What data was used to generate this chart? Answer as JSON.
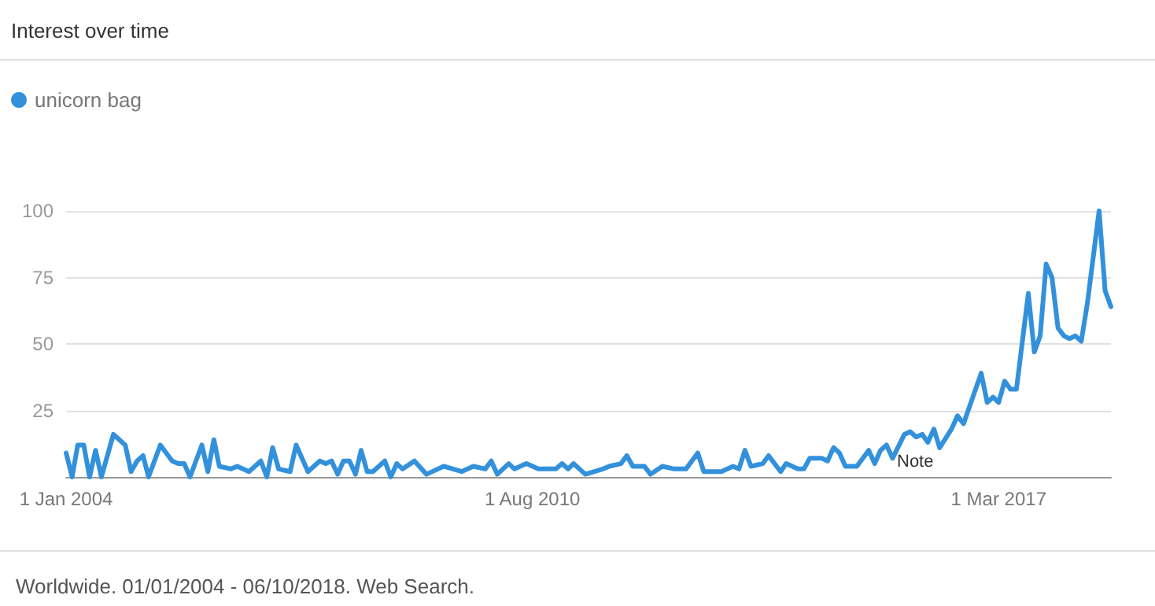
{
  "chart_data": {
    "type": "line",
    "title": "Interest over time",
    "annotations": [
      "Note",
      "Worldwide. 01/01/2004 - 06/10/2018. Web Search."
    ],
    "x": [
      "2004-01",
      "2004-02",
      "2004-03",
      "2004-04",
      "2004-05",
      "2004-06",
      "2004-07",
      "2004-09",
      "2004-11",
      "2004-12",
      "2005-01",
      "2005-02",
      "2005-03",
      "2005-05",
      "2005-07",
      "2005-08",
      "2005-09",
      "2005-10",
      "2005-12",
      "2006-01",
      "2006-02",
      "2006-03",
      "2006-05",
      "2006-06",
      "2006-08",
      "2006-10",
      "2006-11",
      "2006-12",
      "2007-01",
      "2007-03",
      "2007-04",
      "2007-06",
      "2007-08",
      "2007-09",
      "2007-10",
      "2007-11",
      "2007-12",
      "2008-01",
      "2008-02",
      "2008-03",
      "2008-04",
      "2008-05",
      "2008-07",
      "2008-08",
      "2008-09",
      "2008-10",
      "2008-12",
      "2009-02",
      "2009-05",
      "2009-08",
      "2009-10",
      "2009-12",
      "2010-01",
      "2010-02",
      "2010-04",
      "2010-05",
      "2010-07",
      "2010-09",
      "2010-12",
      "2011-01",
      "2011-02",
      "2011-03",
      "2011-05",
      "2011-08",
      "2011-09",
      "2011-11",
      "2011-12",
      "2012-01",
      "2012-03",
      "2012-04",
      "2012-06",
      "2012-08",
      "2012-10",
      "2012-12",
      "2013-01",
      "2013-04",
      "2013-06",
      "2013-07",
      "2013-08",
      "2013-09",
      "2013-11",
      "2013-12",
      "2014-02",
      "2014-03",
      "2014-05",
      "2014-06",
      "2014-07",
      "2014-09",
      "2014-10",
      "2014-11",
      "2014-12",
      "2015-01",
      "2015-03",
      "2015-05",
      "2015-06",
      "2015-07",
      "2015-08",
      "2015-09",
      "2015-11",
      "2015-12",
      "2016-01",
      "2016-02",
      "2016-03",
      "2016-04",
      "2016-05",
      "2016-07",
      "2016-08",
      "2016-09",
      "2016-12",
      "2017-01",
      "2017-02",
      "2017-03",
      "2017-04",
      "2017-05",
      "2017-06",
      "2017-08",
      "2017-09",
      "2017-10",
      "2017-11",
      "2017-12",
      "2018-01",
      "2018-02",
      "2018-03",
      "2018-04",
      "2018-05",
      "2018-06",
      "2018-08",
      "2018-09",
      "2018-10"
    ],
    "series": [
      {
        "name": "unicorn bag",
        "color": "#3391dc",
        "values": [
          9,
          0,
          12,
          12,
          0,
          10,
          0,
          16,
          12,
          2,
          6,
          8,
          0,
          12,
          6,
          5,
          5,
          0,
          12,
          2,
          14,
          4,
          3,
          4,
          2,
          6,
          0,
          11,
          3,
          2,
          12,
          2,
          6,
          5,
          6,
          1,
          6,
          6,
          1,
          10,
          2,
          2,
          6,
          0,
          5,
          3,
          6,
          1,
          4,
          2,
          4,
          3,
          6,
          1,
          5,
          3,
          5,
          3,
          3,
          5,
          3,
          5,
          1,
          3,
          4,
          5,
          8,
          4,
          4,
          1,
          4,
          3,
          3,
          9,
          2,
          2,
          4,
          3,
          10,
          4,
          5,
          8,
          2,
          5,
          3,
          3,
          7,
          7,
          6,
          11,
          9,
          4,
          4,
          10,
          5,
          10,
          12,
          7,
          16,
          17,
          15,
          16,
          13,
          18,
          11,
          18,
          23,
          20,
          39,
          28,
          30,
          28,
          36,
          33,
          33,
          69,
          47,
          53,
          80,
          75,
          56,
          53,
          52,
          53,
          51,
          65,
          100,
          70,
          64
        ]
      }
    ],
    "xlim": [
      "2004-01",
      "2018-10"
    ],
    "xticks": [
      {
        "value": "2004-01",
        "label": "1 Jan 2004"
      },
      {
        "value": "2010-08",
        "label": "1 Aug 2010"
      },
      {
        "value": "2017-03",
        "label": "1 Mar 2017"
      }
    ],
    "ylim": [
      0,
      100
    ],
    "yticks": [
      {
        "value": 0,
        "label": null
      },
      25,
      50,
      75,
      100
    ],
    "grid": "y",
    "legend": "top left",
    "marker": "none",
    "line_style": "solid"
  }
}
